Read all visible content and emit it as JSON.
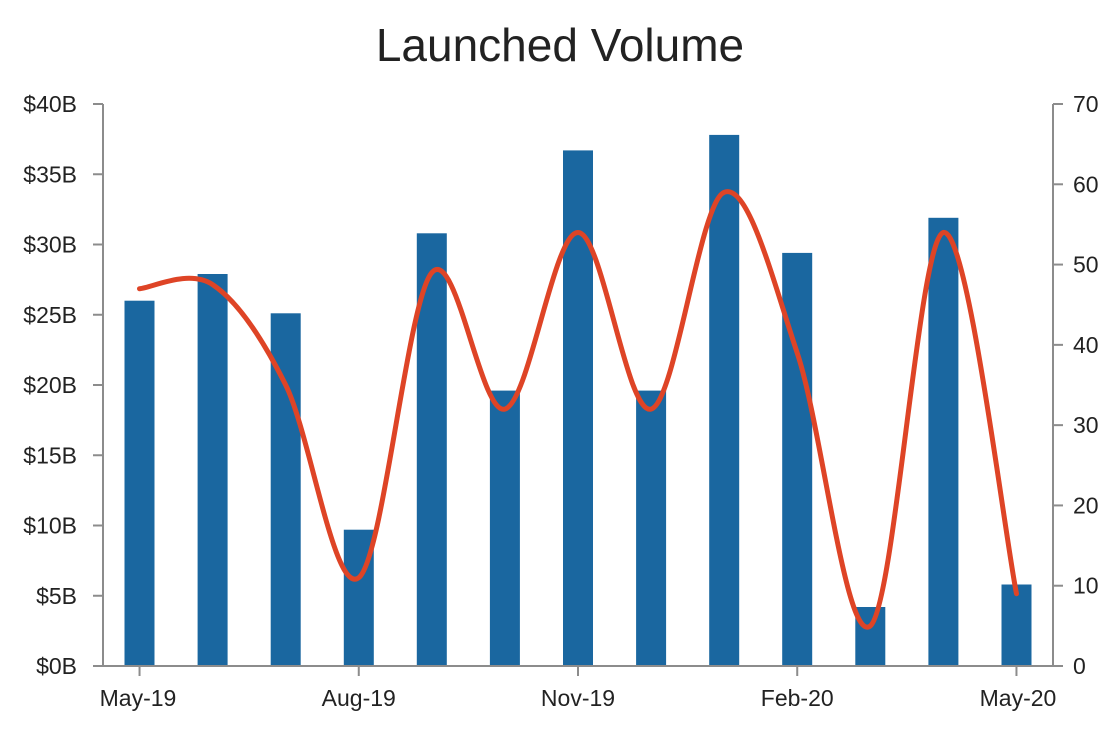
{
  "chart_data": {
    "type": "bar",
    "title": "Launched Volume",
    "x_tick_labels": [
      "May-19",
      "Aug-19",
      "Nov-19",
      "Feb-20",
      "May-20"
    ],
    "categories": [
      "May-19",
      "Jun-19",
      "Jul-19",
      "Aug-19",
      "Sep-19",
      "Oct-19",
      "Nov-19",
      "Dec-19",
      "Jan-20",
      "Feb-20",
      "Mar-20",
      "Apr-20",
      "May-20"
    ],
    "series": [
      {
        "type": "bar",
        "axis": "left",
        "color": "#1a67a0",
        "values": [
          26.0,
          27.9,
          25.1,
          9.7,
          30.8,
          19.6,
          36.7,
          19.6,
          37.8,
          29.4,
          4.2,
          31.9,
          5.8
        ]
      },
      {
        "type": "line",
        "axis": "right",
        "color": "#de4426",
        "values": [
          47,
          47.5,
          35,
          11,
          49,
          32,
          54,
          32,
          59,
          39,
          5,
          54,
          9
        ]
      }
    ],
    "y_left": {
      "min": 0,
      "max": 40,
      "step": 5,
      "tick_labels": [
        "$0B",
        "$5B",
        "$10B",
        "$15B",
        "$20B",
        "$25B",
        "$30B",
        "$35B",
        "$40B"
      ]
    },
    "y_right": {
      "min": 0,
      "max": 70,
      "step": 10,
      "tick_labels": [
        "0",
        "10",
        "20",
        "30",
        "40",
        "50",
        "60",
        "70"
      ]
    },
    "grid": false,
    "legend": "none"
  }
}
